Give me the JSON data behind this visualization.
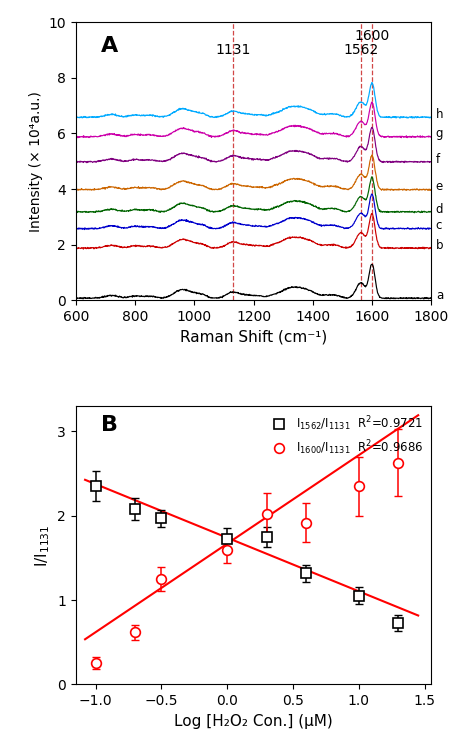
{
  "panel_A": {
    "xlabel": "Raman Shift (cm⁻¹)",
    "ylabel": "Intensity (× 10⁴a.u.)",
    "xlim": [
      600,
      1800
    ],
    "ylim": [
      0,
      10
    ],
    "labels": [
      "a",
      "b",
      "c",
      "d",
      "e",
      "f",
      "g",
      "h"
    ],
    "colors": [
      "#000000",
      "#cc0000",
      "#0000cc",
      "#006400",
      "#cc6600",
      "#800080",
      "#cc00aa",
      "#00aaff"
    ],
    "offsets": [
      0.0,
      1.8,
      2.5,
      3.1,
      3.9,
      4.9,
      5.8,
      6.5
    ],
    "peak_scales": [
      1.0,
      1.0,
      1.0,
      1.0,
      1.0,
      1.0,
      1.0,
      1.0
    ],
    "noise_seeds": [
      10,
      20,
      30,
      40,
      50,
      60,
      70,
      80
    ]
  },
  "panel_B": {
    "xlabel": "Log [H₂O₂ Con.] (μM)",
    "ylabel": "I/I$_{1131}$",
    "xlim": [
      -1.15,
      1.55
    ],
    "ylim": [
      0,
      3.3
    ],
    "xticks": [
      -1.0,
      -0.5,
      0.0,
      0.5,
      1.0,
      1.5
    ],
    "yticks": [
      0,
      1,
      2,
      3
    ],
    "series1_x": [
      -1.0,
      -0.7,
      -0.5,
      0.0,
      0.3,
      0.6,
      1.0,
      1.3
    ],
    "series1_y": [
      2.35,
      2.08,
      1.97,
      1.73,
      1.75,
      1.32,
      1.05,
      0.73
    ],
    "series1_yerr": [
      0.18,
      0.13,
      0.1,
      0.13,
      0.12,
      0.1,
      0.1,
      0.09
    ],
    "series2_x": [
      -1.0,
      -0.7,
      -0.5,
      0.0,
      0.3,
      0.6,
      1.0,
      1.3
    ],
    "series2_y": [
      0.25,
      0.62,
      1.25,
      1.6,
      2.02,
      1.92,
      2.35,
      2.63
    ],
    "series2_yerr": [
      0.07,
      0.09,
      0.14,
      0.16,
      0.25,
      0.23,
      0.35,
      0.4
    ],
    "fit1_slope": -0.636,
    "fit1_intercept": 1.74,
    "fit2_slope": 1.05,
    "fit2_intercept": 1.67,
    "legend1": "I$_{1562}$/I$_{1131}$  R$^2$=0.9721",
    "legend2": "I$_{1600}$/I$_{1131}$  R$^2$=0.9686"
  }
}
